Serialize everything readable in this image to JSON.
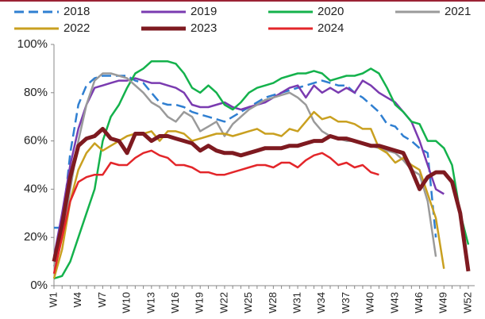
{
  "chart_data": {
    "type": "line",
    "categories": [
      "W1",
      null,
      null,
      "W4",
      null,
      null,
      "W7",
      null,
      null,
      "W10",
      null,
      null,
      "W13",
      null,
      null,
      "W16",
      null,
      null,
      "W19",
      null,
      null,
      "W22",
      null,
      null,
      "W25",
      null,
      null,
      "W28",
      null,
      null,
      "W31",
      null,
      null,
      "W34",
      null,
      null,
      "W37",
      null,
      null,
      "W40",
      null,
      null,
      "W43",
      null,
      null,
      "W46",
      null,
      null,
      "W49",
      null,
      null,
      "W52"
    ],
    "ylim": [
      0,
      100
    ],
    "yticks": [
      {
        "value": 0,
        "label": "0%"
      },
      {
        "value": 20,
        "label": "20%"
      },
      {
        "value": 40,
        "label": "40%"
      },
      {
        "value": 60,
        "label": "60%"
      },
      {
        "value": 80,
        "label": "80%"
      },
      {
        "value": 100,
        "label": "100%"
      }
    ],
    "grid": false,
    "legend": "top",
    "series": [
      {
        "name": "2018",
        "color": "#2f7fd1",
        "dashed": true,
        "values": [
          24,
          24,
          55,
          75,
          83,
          86,
          87,
          87,
          87,
          87,
          85,
          84,
          80,
          76,
          75,
          75,
          74,
          72,
          71,
          70,
          69,
          68,
          70,
          72,
          74,
          76,
          78,
          79,
          80,
          81,
          82,
          83,
          84,
          85,
          84,
          83,
          83,
          80,
          78,
          75,
          72,
          67,
          66,
          62,
          60,
          57,
          55,
          20,
          null,
          null,
          null,
          null
        ]
      },
      {
        "name": "2019",
        "color": "#7a3bb0",
        "values": [
          12,
          30,
          50,
          65,
          75,
          82,
          83,
          84,
          85,
          85,
          86,
          85,
          84,
          84,
          83,
          82,
          80,
          75,
          74,
          74,
          75,
          76,
          74,
          73,
          74,
          75,
          76,
          78,
          80,
          82,
          83,
          78,
          83,
          80,
          82,
          80,
          82,
          80,
          85,
          83,
          80,
          78,
          76,
          72,
          68,
          60,
          50,
          40,
          38,
          null,
          null,
          null
        ]
      },
      {
        "name": "2020",
        "color": "#14b24c",
        "values": [
          3,
          4,
          10,
          20,
          30,
          40,
          60,
          70,
          75,
          82,
          88,
          90,
          93,
          93,
          93,
          92,
          88,
          82,
          80,
          83,
          80,
          75,
          73,
          76,
          80,
          82,
          83,
          84,
          86,
          87,
          88,
          88,
          89,
          88,
          85,
          86,
          87,
          87,
          88,
          90,
          88,
          82,
          75,
          72,
          68,
          67,
          60,
          60,
          57,
          50,
          30,
          17
        ]
      },
      {
        "name": "2021",
        "color": "#9a9a9a",
        "values": [
          8,
          20,
          40,
          60,
          75,
          85,
          88,
          88,
          87,
          86,
          83,
          80,
          76,
          74,
          70,
          68,
          72,
          70,
          64,
          66,
          68,
          62,
          67,
          70,
          73,
          75,
          77,
          78,
          79,
          80,
          78,
          75,
          68,
          64,
          62,
          61,
          60,
          60,
          59,
          58,
          57,
          56,
          55,
          52,
          48,
          46,
          35,
          12,
          null,
          null,
          null,
          null
        ]
      },
      {
        "name": "2022",
        "color": "#c9a020",
        "values": [
          3,
          15,
          35,
          48,
          55,
          59,
          56,
          58,
          60,
          62,
          63,
          63,
          64,
          60,
          64,
          64,
          63,
          60,
          61,
          62,
          63,
          63,
          62,
          63,
          64,
          65,
          63,
          63,
          62,
          65,
          64,
          68,
          72,
          69,
          70,
          68,
          68,
          67,
          65,
          65,
          57,
          55,
          51,
          53,
          50,
          48,
          38,
          28,
          7,
          null,
          null,
          null
        ]
      },
      {
        "name": "2023",
        "color": "#7e1a20",
        "bold": true,
        "values": [
          10,
          25,
          45,
          58,
          61,
          62,
          65,
          61,
          60,
          55,
          63,
          63,
          60,
          62,
          62,
          61,
          60,
          59,
          56,
          58,
          56,
          55,
          55,
          54,
          55,
          56,
          57,
          57,
          57,
          58,
          58,
          59,
          60,
          60,
          62,
          61,
          61,
          60,
          59,
          58,
          58,
          57,
          56,
          55,
          48,
          40,
          45,
          47,
          47,
          43,
          30,
          6
        ]
      },
      {
        "name": "2024",
        "color": "#e3262a",
        "values": [
          5,
          20,
          35,
          43,
          45,
          46,
          46,
          51,
          50,
          50,
          53,
          55,
          56,
          54,
          53,
          50,
          50,
          49,
          47,
          47,
          46,
          46,
          47,
          48,
          49,
          50,
          50,
          49,
          51,
          51,
          49,
          52,
          54,
          55,
          53,
          50,
          51,
          49,
          50,
          47,
          46,
          null,
          null,
          null,
          null,
          null,
          null,
          null,
          null,
          null,
          null,
          null
        ]
      }
    ]
  }
}
